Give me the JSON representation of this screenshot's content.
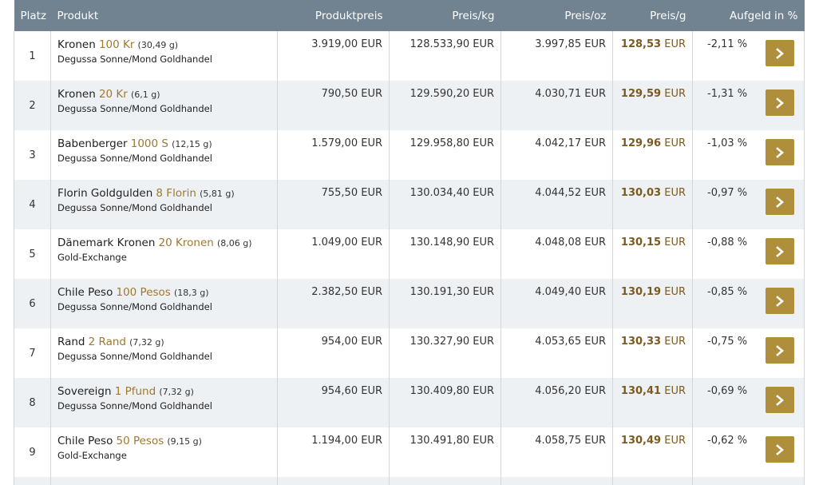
{
  "headers": {
    "platz": "Platz",
    "produkt": "Produkt",
    "produktpreis": "Produktpreis",
    "preis_kg": "Preis/kg",
    "preis_oz": "Preis/oz",
    "preis_g": "Preis/g",
    "aufgeld": "Aufgeld in %"
  },
  "rows": [
    {
      "platz": "1",
      "name": "Kronen",
      "value": "100 Kr",
      "weight": "(30,49 g)",
      "dealer": "Degussa Sonne/Mond Goldhandel",
      "produktpreis": "3.919,00 EUR",
      "preis_kg": "128.533,90 EUR",
      "preis_oz": "3.997,85 EUR",
      "preis_g_num": "128,53",
      "preis_g_unit": "EUR",
      "aufgeld": "-2,11 %"
    },
    {
      "platz": "2",
      "name": "Kronen",
      "value": "20 Kr",
      "weight": "(6,1 g)",
      "dealer": "Degussa Sonne/Mond Goldhandel",
      "produktpreis": "790,50 EUR",
      "preis_kg": "129.590,20 EUR",
      "preis_oz": "4.030,71 EUR",
      "preis_g_num": "129,59",
      "preis_g_unit": "EUR",
      "aufgeld": "-1,31 %"
    },
    {
      "platz": "3",
      "name": "Babenberger",
      "value": "1000 S",
      "weight": "(12,15 g)",
      "dealer": "Degussa Sonne/Mond Goldhandel",
      "produktpreis": "1.579,00 EUR",
      "preis_kg": "129.958,80 EUR",
      "preis_oz": "4.042,17 EUR",
      "preis_g_num": "129,96",
      "preis_g_unit": "EUR",
      "aufgeld": "-1,03 %"
    },
    {
      "platz": "4",
      "name": "Florin Goldgulden",
      "value": "8 Florin",
      "weight": "(5,81 g)",
      "dealer": "Degussa Sonne/Mond Goldhandel",
      "produktpreis": "755,50 EUR",
      "preis_kg": "130.034,40 EUR",
      "preis_oz": "4.044,52 EUR",
      "preis_g_num": "130,03",
      "preis_g_unit": "EUR",
      "aufgeld": "-0,97 %"
    },
    {
      "platz": "5",
      "name": "Dänemark Kronen",
      "value": "20 Kronen",
      "weight": "(8,06 g)",
      "dealer": "Gold-Exchange",
      "produktpreis": "1.049,00 EUR",
      "preis_kg": "130.148,90 EUR",
      "preis_oz": "4.048,08 EUR",
      "preis_g_num": "130,15",
      "preis_g_unit": "EUR",
      "aufgeld": "-0,88 %"
    },
    {
      "platz": "6",
      "name": "Chile Peso",
      "value": "100 Pesos",
      "weight": "(18,3 g)",
      "dealer": "Degussa Sonne/Mond Goldhandel",
      "produktpreis": "2.382,50 EUR",
      "preis_kg": "130.191,30 EUR",
      "preis_oz": "4.049,40 EUR",
      "preis_g_num": "130,19",
      "preis_g_unit": "EUR",
      "aufgeld": "-0,85 %"
    },
    {
      "platz": "7",
      "name": "Rand",
      "value": "2 Rand",
      "weight": "(7,32 g)",
      "dealer": "Degussa Sonne/Mond Goldhandel",
      "produktpreis": "954,00 EUR",
      "preis_kg": "130.327,90 EUR",
      "preis_oz": "4.053,65 EUR",
      "preis_g_num": "130,33",
      "preis_g_unit": "EUR",
      "aufgeld": "-0,75 %"
    },
    {
      "platz": "8",
      "name": "Sovereign",
      "value": "1 Pfund",
      "weight": "(7,32 g)",
      "dealer": "Degussa Sonne/Mond Goldhandel",
      "produktpreis": "954,60 EUR",
      "preis_kg": "130.409,80 EUR",
      "preis_oz": "4.056,20 EUR",
      "preis_g_num": "130,41",
      "preis_g_unit": "EUR",
      "aufgeld": "-0,69 %"
    },
    {
      "platz": "9",
      "name": "Chile Peso",
      "value": "50 Pesos",
      "weight": "(9,15 g)",
      "dealer": "Gold-Exchange",
      "produktpreis": "1.194,00 EUR",
      "preis_kg": "130.491,80 EUR",
      "preis_oz": "4.058,75 EUR",
      "preis_g_num": "130,49",
      "preis_g_unit": "EUR",
      "aufgeld": "-0,62 %"
    }
  ],
  "icons": {
    "row_button": "chevron-right-icon"
  },
  "colors": {
    "header_bg": "#718290",
    "accent_gold": "#b08f3c",
    "price_brown": "#7a5a20"
  }
}
